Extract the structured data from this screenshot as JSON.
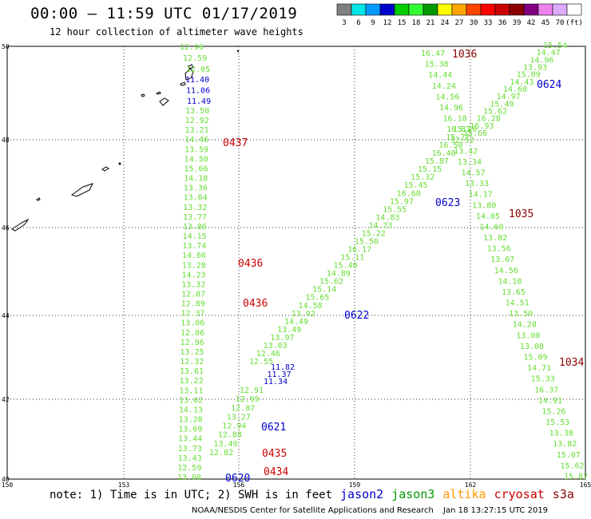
{
  "header": {
    "title": "00:00 – 11:59 UTC 01/17/2019",
    "subtitle": "12 hour collection of altimeter wave heights"
  },
  "colorbar": {
    "colors": [
      "#808080",
      "#00e5e5",
      "#0099ff",
      "#0000cc",
      "#00cc00",
      "#33ff33",
      "#009900",
      "#ffff00",
      "#ffa500",
      "#ff4500",
      "#ff0000",
      "#cc0000",
      "#8b0000",
      "#800080",
      "#ee82ee",
      "#ddaaff",
      "#ffffff"
    ],
    "labels": [
      "3",
      "6",
      "9",
      "12",
      "15",
      "18",
      "21",
      "24",
      "27",
      "30",
      "33",
      "36",
      "39",
      "42",
      "45",
      "70",
      "(ft)"
    ]
  },
  "axes": {
    "x_labels": [
      "150",
      "153",
      "156",
      "159",
      "162",
      "165"
    ],
    "y_labels": [
      "50",
      "48",
      "46",
      "44",
      "42",
      "40"
    ]
  },
  "colors": {
    "jason2": "#0000cc",
    "jason3": "#009900",
    "altika": "#ff9900",
    "cryosat": "#cc0000",
    "s3a": "#8b0000",
    "swh": "#66dd33"
  },
  "track_labels": [
    {
      "text": "0437",
      "color": "#cc0000"
    },
    {
      "text": "0436",
      "color": "#cc0000"
    },
    {
      "text": "0436",
      "color": "#cc0000"
    },
    {
      "text": "0435",
      "color": "#cc0000"
    },
    {
      "text": "0434",
      "color": "#cc0000"
    },
    {
      "text": "0621",
      "color": "#0000cc"
    },
    {
      "text": "0620",
      "color": "#0000cc"
    },
    {
      "text": "0622",
      "color": "#0000cc"
    },
    {
      "text": "0623",
      "color": "#0000cc"
    },
    {
      "text": "0624",
      "color": "#0000cc"
    },
    {
      "text": "1036",
      "color": "#8b0000"
    },
    {
      "text": "1035",
      "color": "#8b0000"
    },
    {
      "text": "1034",
      "color": "#8b0000"
    }
  ],
  "tracks": [
    {
      "color": "#66dd33",
      "values": [
        "12.96",
        "12.59",
        "12.05"
      ]
    },
    {
      "color": "#0000cc",
      "values": [
        "11.40",
        "11.06",
        "11.49"
      ]
    },
    {
      "color": "#66dd33",
      "values": [
        "13.50",
        "12.92",
        "13.21",
        "14.46",
        "13.59",
        "14.50",
        "15.66",
        "14.18",
        "13.36",
        "13.04",
        "13.32",
        "13.77",
        "13.86",
        "14.15",
        "13.74",
        "14.66",
        "13.28",
        "14.23",
        "13.32",
        "12.87",
        "12.89",
        "12.37",
        "13.06",
        "12.06",
        "12.96",
        "13.25",
        "12.32",
        "13.61",
        "13.22",
        "13.11",
        "13.02",
        "14.13",
        "13.28",
        "13.69",
        "13.44",
        "13.73",
        "13.43",
        "12.59",
        "13.08"
      ]
    },
    {
      "color": "#66dd33",
      "values": [
        "12.82",
        "13.49",
        "12.88",
        "12.94",
        "13.27",
        "12.87",
        "12.99",
        "12.91"
      ]
    },
    {
      "color": "#66dd33",
      "values": [
        "12.55",
        "12.46",
        "13.03",
        "13.97",
        "13.49",
        "14.49",
        "13.92",
        "14.58",
        "15.65",
        "15.14",
        "15.62",
        "14.89",
        "15.40",
        "15.11",
        "16.17",
        "15.50",
        "15.22",
        "14.23",
        "14.83",
        "15.55",
        "15.97",
        "16.60",
        "15.45",
        "15.32",
        "15.15",
        "15.87",
        "16.40",
        "16.50",
        "15.27",
        "15.20"
      ]
    },
    {
      "color": "#0000cc",
      "values": [
        "11.82",
        "11.37",
        "11.34"
      ]
    },
    {
      "color": "#66dd33",
      "values": [
        "15.54",
        "14.47",
        "14.96",
        "13.93",
        "15.09",
        "14.43",
        "14.60",
        "14.97",
        "15.49",
        "15.62",
        "16.28",
        "16.93",
        "15.66"
      ]
    },
    {
      "color": "#66dd33",
      "values": [
        "16.47",
        "15.38",
        "14.44",
        "14.24",
        "14.56",
        "14.96",
        "16.18",
        "16.87",
        "12.52",
        "13.42",
        "13.34",
        "14.57",
        "13.33",
        "14.17",
        "13.80",
        "14.05",
        "14.60",
        "13.82",
        "13.56",
        "13.07",
        "14.56",
        "14.10",
        "13.65",
        "14.51",
        "13.50",
        "14.28",
        "13.00",
        "13.08",
        "15.09",
        "14.71",
        "15.33",
        "16.37",
        "14.91",
        "15.26",
        "15.53",
        "13.38",
        "13.82",
        "15.07",
        "15.62",
        "15.87"
      ]
    }
  ],
  "legend": {
    "note": "note: 1) Time is in UTC; 2) SWH is in feet",
    "satellites": [
      {
        "name": "jason2",
        "color": "#0000cc"
      },
      {
        "name": "jason3",
        "color": "#009900"
      },
      {
        "name": "altika",
        "color": "#ff9900"
      },
      {
        "name": "cryosat",
        "color": "#cc0000"
      },
      {
        "name": "s3a",
        "color": "#8b0000"
      }
    ]
  },
  "footer": {
    "credit": "NOAA/NESDIS Center for Satellite Applications and Research",
    "timestamp": "Jan 18 13:27:15 UTC 2019"
  }
}
